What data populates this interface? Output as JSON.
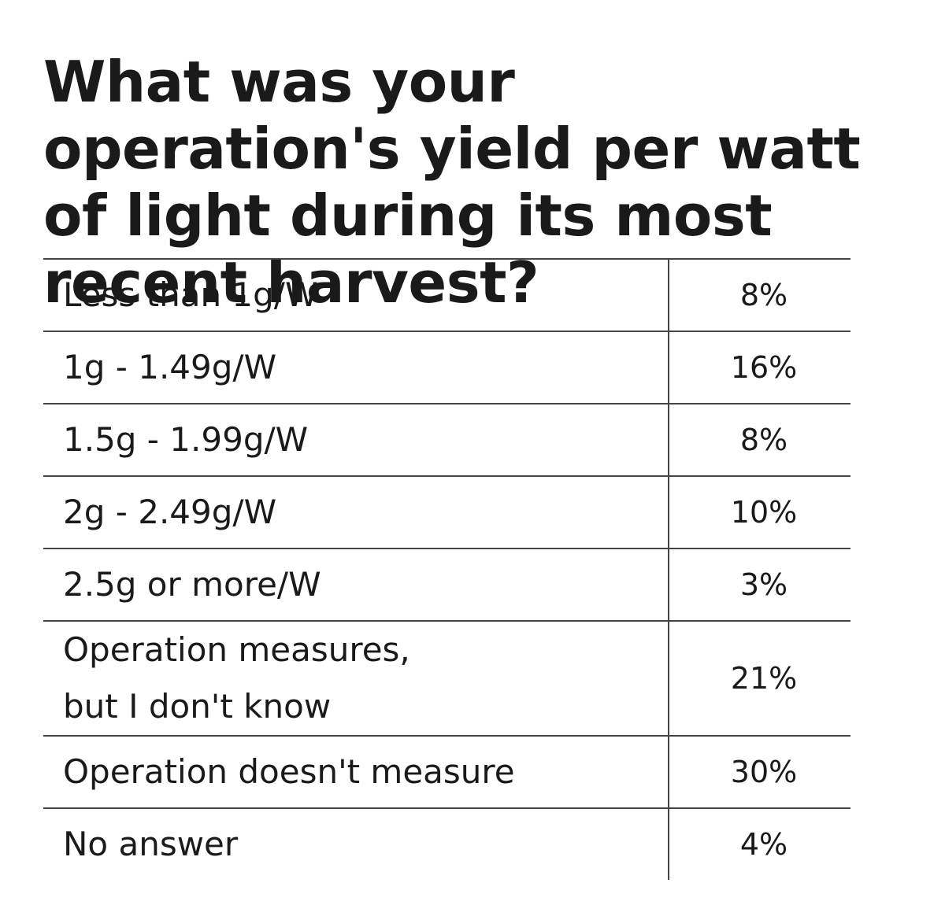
{
  "header": {
    "title": "What was your operation's yield per watt of light during its most recent harvest?"
  },
  "table": {
    "rows": [
      [
        [
          "Less than 1g/W"
        ],
        "8%"
      ],
      [
        [
          "1g - 1.49g/W"
        ],
        "16%"
      ],
      [
        [
          "1.5g - 1.99g/W"
        ],
        "8%"
      ],
      [
        [
          "2g - 2.49g/W"
        ],
        "10%"
      ],
      [
        [
          "2.5g or more/W"
        ],
        "3%"
      ],
      [
        [
          "Operation measures,",
          "but I don't know"
        ],
        "21%"
      ],
      [
        [
          "Operation doesn't measure"
        ],
        "30%"
      ],
      [
        [
          "No answer"
        ],
        "4%"
      ]
    ]
  }
}
